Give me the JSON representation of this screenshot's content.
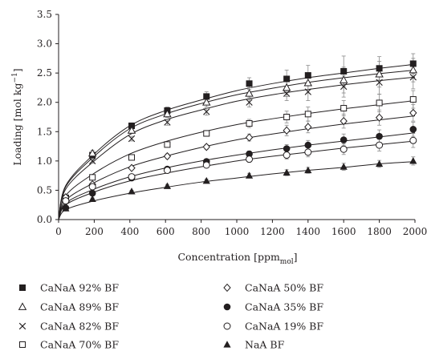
{
  "chart_data": {
    "type": "scatter",
    "title": "",
    "xlabel": "Concentration [ppm",
    "xlabel_sub": "mol",
    "xlabel_tail": "]",
    "ylabel": "Loading [mol kg",
    "ylabel_sup": "−1",
    "ylabel_tail": "]",
    "xlim": [
      0,
      2000
    ],
    "ylim": [
      0,
      3.5
    ],
    "xticks": [
      "0",
      "200",
      "400",
      "600",
      "800",
      "1000",
      "1200",
      "1400",
      "1600",
      "1800",
      "2000"
    ],
    "yticks": [
      "0.0",
      "0.5",
      "1.0",
      "1.5",
      "2.0",
      "2.5",
      "3.0",
      "3.5"
    ],
    "grid": false,
    "legend_position": "bottom",
    "series": [
      {
        "name": "CaNaA 92% BF",
        "marker": "square-filled",
        "x": [
          40,
          190,
          410,
          610,
          830,
          1070,
          1280,
          1400,
          1600,
          1800,
          1990
        ],
        "y": [
          0.37,
          1.1,
          1.6,
          1.86,
          2.1,
          2.32,
          2.4,
          2.46,
          2.53,
          2.58,
          2.66
        ],
        "err": [
          0.02,
          0.05,
          0.05,
          0.06,
          0.08,
          0.1,
          0.15,
          0.17,
          0.26,
          0.2,
          0.17
        ],
        "fit": [
          0,
          0.58,
          1.12,
          1.6,
          1.86,
          2.04,
          2.2,
          2.32,
          2.42,
          2.5,
          2.58,
          2.65
        ]
      },
      {
        "name": "CaNaA 89% BF",
        "marker": "triangle-open",
        "x": [
          40,
          190,
          410,
          610,
          830,
          1070,
          1280,
          1400,
          1600,
          1800,
          1990
        ],
        "y": [
          0.36,
          1.13,
          1.52,
          1.8,
          2.0,
          2.15,
          2.25,
          2.33,
          2.38,
          2.48,
          2.55
        ],
        "err": [
          0.02,
          0.05,
          0.05,
          0.06,
          0.08,
          0.1,
          0.15,
          0.17,
          0.22,
          0.22,
          0.2
        ],
        "fit": [
          0,
          0.56,
          1.08,
          1.55,
          1.8,
          1.98,
          2.13,
          2.24,
          2.34,
          2.42,
          2.49,
          2.55
        ]
      },
      {
        "name": "CaNaA 82% BF",
        "marker": "cross",
        "x": [
          40,
          190,
          410,
          610,
          830,
          1070,
          1280,
          1400,
          1600,
          1800,
          1990
        ],
        "y": [
          0.35,
          1.0,
          1.38,
          1.66,
          1.84,
          2.0,
          2.15,
          2.18,
          2.27,
          2.34,
          2.43
        ],
        "err": [
          0.02,
          0.04,
          0.04,
          0.05,
          0.06,
          0.08,
          0.12,
          0.15,
          0.18,
          0.2,
          0.2
        ],
        "fit": [
          0,
          0.52,
          1.0,
          1.45,
          1.7,
          1.87,
          2.02,
          2.13,
          2.22,
          2.3,
          2.37,
          2.43
        ]
      },
      {
        "name": "CaNaA 70% BF",
        "marker": "square-open",
        "x": [
          40,
          190,
          410,
          610,
          830,
          1070,
          1280,
          1400,
          1600,
          1800,
          1990
        ],
        "y": [
          0.37,
          0.72,
          1.06,
          1.28,
          1.47,
          1.64,
          1.75,
          1.8,
          1.9,
          1.99,
          2.05
        ],
        "err": [
          0.02,
          0.03,
          0.04,
          0.04,
          0.05,
          0.07,
          0.1,
          0.12,
          0.13,
          0.15,
          0.15
        ],
        "fit": [
          0,
          0.41,
          0.79,
          1.12,
          1.33,
          1.49,
          1.62,
          1.72,
          1.81,
          1.89,
          1.96,
          2.03
        ]
      },
      {
        "name": "CaNaA 50% BF",
        "marker": "diamond-open",
        "x": [
          40,
          190,
          410,
          610,
          830,
          1070,
          1280,
          1400,
          1600,
          1800,
          1990
        ],
        "y": [
          0.38,
          0.6,
          0.88,
          1.08,
          1.24,
          1.4,
          1.52,
          1.58,
          1.68,
          1.74,
          1.82
        ],
        "err": [
          0.02,
          0.03,
          0.03,
          0.04,
          0.04,
          0.06,
          0.09,
          0.1,
          0.12,
          0.13,
          0.14
        ],
        "fit": [
          0,
          0.33,
          0.63,
          0.9,
          1.08,
          1.23,
          1.36,
          1.46,
          1.55,
          1.63,
          1.7,
          1.77
        ]
      },
      {
        "name": "CaNaA 35% BF",
        "marker": "circle-filled",
        "x": [
          40,
          190,
          410,
          610,
          830,
          1070,
          1280,
          1400,
          1600,
          1800,
          1990
        ],
        "y": [
          0.2,
          0.45,
          0.71,
          0.86,
          0.99,
          1.12,
          1.21,
          1.27,
          1.36,
          1.42,
          1.54
        ],
        "err": [
          0.02,
          0.03,
          0.03,
          0.03,
          0.04,
          0.05,
          0.07,
          0.08,
          0.1,
          0.11,
          0.12
        ],
        "fit": [
          0,
          0.28,
          0.52,
          0.73,
          0.88,
          1.0,
          1.1,
          1.19,
          1.27,
          1.34,
          1.41,
          1.48
        ]
      },
      {
        "name": "CaNaA 19% BF",
        "marker": "circle-open",
        "x": [
          40,
          190,
          410,
          610,
          830,
          1070,
          1280,
          1400,
          1600,
          1800,
          1990
        ],
        "y": [
          0.32,
          0.56,
          0.73,
          0.84,
          0.93,
          1.03,
          1.1,
          1.15,
          1.2,
          1.27,
          1.35
        ],
        "err": [
          0.02,
          0.03,
          0.03,
          0.03,
          0.04,
          0.05,
          0.07,
          0.08,
          0.09,
          0.1,
          0.12
        ],
        "fit": [
          0,
          0.25,
          0.47,
          0.66,
          0.79,
          0.9,
          1.0,
          1.08,
          1.15,
          1.22,
          1.28,
          1.34
        ]
      },
      {
        "name": "NaA BF",
        "marker": "triangle-filled",
        "x": [
          40,
          190,
          410,
          610,
          830,
          1070,
          1280,
          1400,
          1600,
          1800,
          1990
        ],
        "y": [
          0.19,
          0.35,
          0.48,
          0.57,
          0.66,
          0.75,
          0.8,
          0.84,
          0.9,
          0.95,
          1.0
        ],
        "err": [
          0.01,
          0.02,
          0.02,
          0.03,
          0.03,
          0.04,
          0.05,
          0.05,
          0.06,
          0.06,
          0.07
        ],
        "fit": [
          0,
          0.17,
          0.32,
          0.45,
          0.55,
          0.64,
          0.71,
          0.78,
          0.84,
          0.89,
          0.95,
          0.99
        ]
      }
    ]
  }
}
